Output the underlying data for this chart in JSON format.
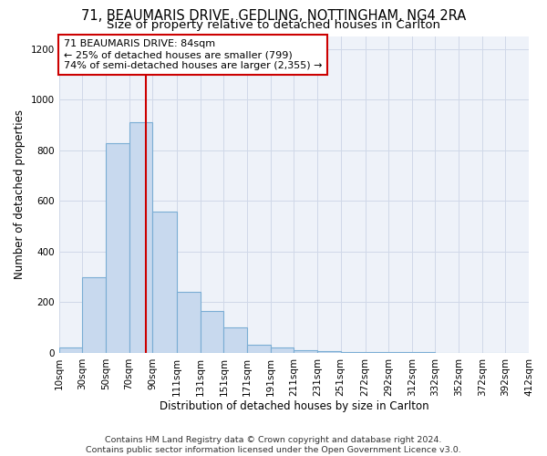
{
  "title_line1": "71, BEAUMARIS DRIVE, GEDLING, NOTTINGHAM, NG4 2RA",
  "title_line2": "Size of property relative to detached houses in Carlton",
  "xlabel": "Distribution of detached houses by size in Carlton",
  "ylabel": "Number of detached properties",
  "footer": "Contains HM Land Registry data © Crown copyright and database right 2024.\nContains public sector information licensed under the Open Government Licence v3.0.",
  "bin_edges": [
    10,
    30,
    50,
    70,
    90,
    111,
    131,
    151,
    171,
    191,
    211,
    231,
    251,
    272,
    292,
    312,
    332,
    352,
    372,
    392,
    412
  ],
  "bar_heights": [
    20,
    300,
    830,
    910,
    560,
    240,
    165,
    100,
    32,
    20,
    10,
    7,
    5,
    3,
    2,
    2,
    1,
    1,
    1,
    1
  ],
  "bar_color": "#c8d9ee",
  "bar_edgecolor": "#7aadd4",
  "bar_linewidth": 0.8,
  "vline_x": 84,
  "vline_color": "#cc0000",
  "vline_linewidth": 1.5,
  "annotation_text": "71 BEAUMARIS DRIVE: 84sqm\n← 25% of detached houses are smaller (799)\n74% of semi-detached houses are larger (2,355) →",
  "ylim": [
    0,
    1250
  ],
  "yticks": [
    0,
    200,
    400,
    600,
    800,
    1000,
    1200
  ],
  "xtick_labels": [
    "10sqm",
    "30sqm",
    "50sqm",
    "70sqm",
    "90sqm",
    "111sqm",
    "131sqm",
    "151sqm",
    "171sqm",
    "191sqm",
    "211sqm",
    "231sqm",
    "251sqm",
    "272sqm",
    "292sqm",
    "312sqm",
    "332sqm",
    "352sqm",
    "372sqm",
    "392sqm",
    "412sqm"
  ],
  "grid_color": "#d0d8e8",
  "background_color": "#eef2f9",
  "fig_facecolor": "#ffffff",
  "title_fontsize": 10.5,
  "subtitle_fontsize": 9.5,
  "axis_label_fontsize": 8.5,
  "tick_fontsize": 7.5,
  "footer_fontsize": 6.8,
  "annotation_fontsize": 8.0
}
